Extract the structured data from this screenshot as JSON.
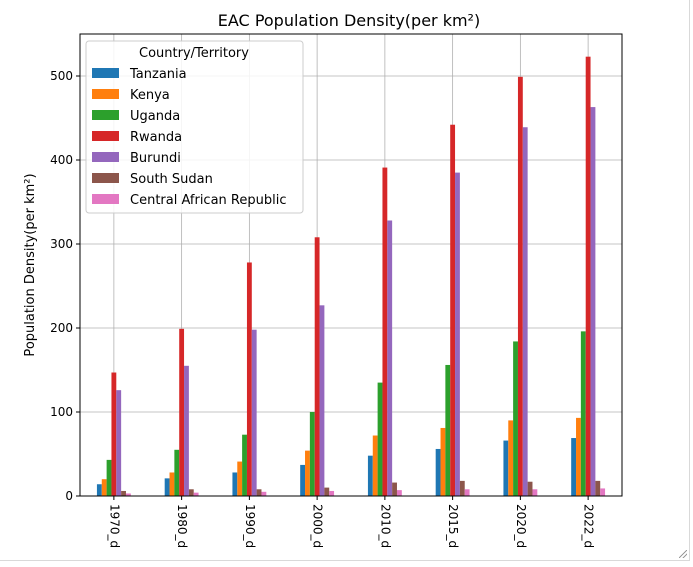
{
  "chart_data": {
    "type": "bar",
    "title": "EAC Population Density(per km²)",
    "xlabel": "",
    "ylabel": "Population Density(per km²)",
    "categories": [
      "1970_d",
      "1980_d",
      "1990_d",
      "2000_d",
      "2010_d",
      "2015_d",
      "2020_d",
      "2022_d"
    ],
    "ylim": [
      0,
      550
    ],
    "yticks": [
      0,
      100,
      200,
      300,
      400,
      500
    ],
    "grid": true,
    "legend": {
      "title": "Country/Territory",
      "placement": "top-left"
    },
    "series": [
      {
        "name": "Tanzania",
        "color": "#1f77b4",
        "values": [
          14,
          21,
          28,
          37,
          48,
          56,
          66,
          69
        ]
      },
      {
        "name": "Kenya",
        "color": "#ff7f0e",
        "values": [
          20,
          28,
          41,
          54,
          72,
          81,
          90,
          93
        ]
      },
      {
        "name": "Uganda",
        "color": "#2ca02c",
        "values": [
          43,
          55,
          73,
          100,
          135,
          156,
          184,
          196
        ]
      },
      {
        "name": "Rwanda",
        "color": "#d62728",
        "values": [
          147,
          199,
          278,
          308,
          391,
          442,
          499,
          523
        ]
      },
      {
        "name": "Burundi",
        "color": "#9467bd",
        "values": [
          126,
          155,
          198,
          227,
          328,
          385,
          439,
          463
        ]
      },
      {
        "name": "South Sudan",
        "color": "#8c564b",
        "values": [
          6,
          8,
          8,
          10,
          16,
          18,
          17,
          18
        ]
      },
      {
        "name": "Central African Republic",
        "color": "#e377c2",
        "values": [
          3,
          4,
          5,
          6,
          7,
          8,
          8,
          9
        ]
      }
    ]
  }
}
